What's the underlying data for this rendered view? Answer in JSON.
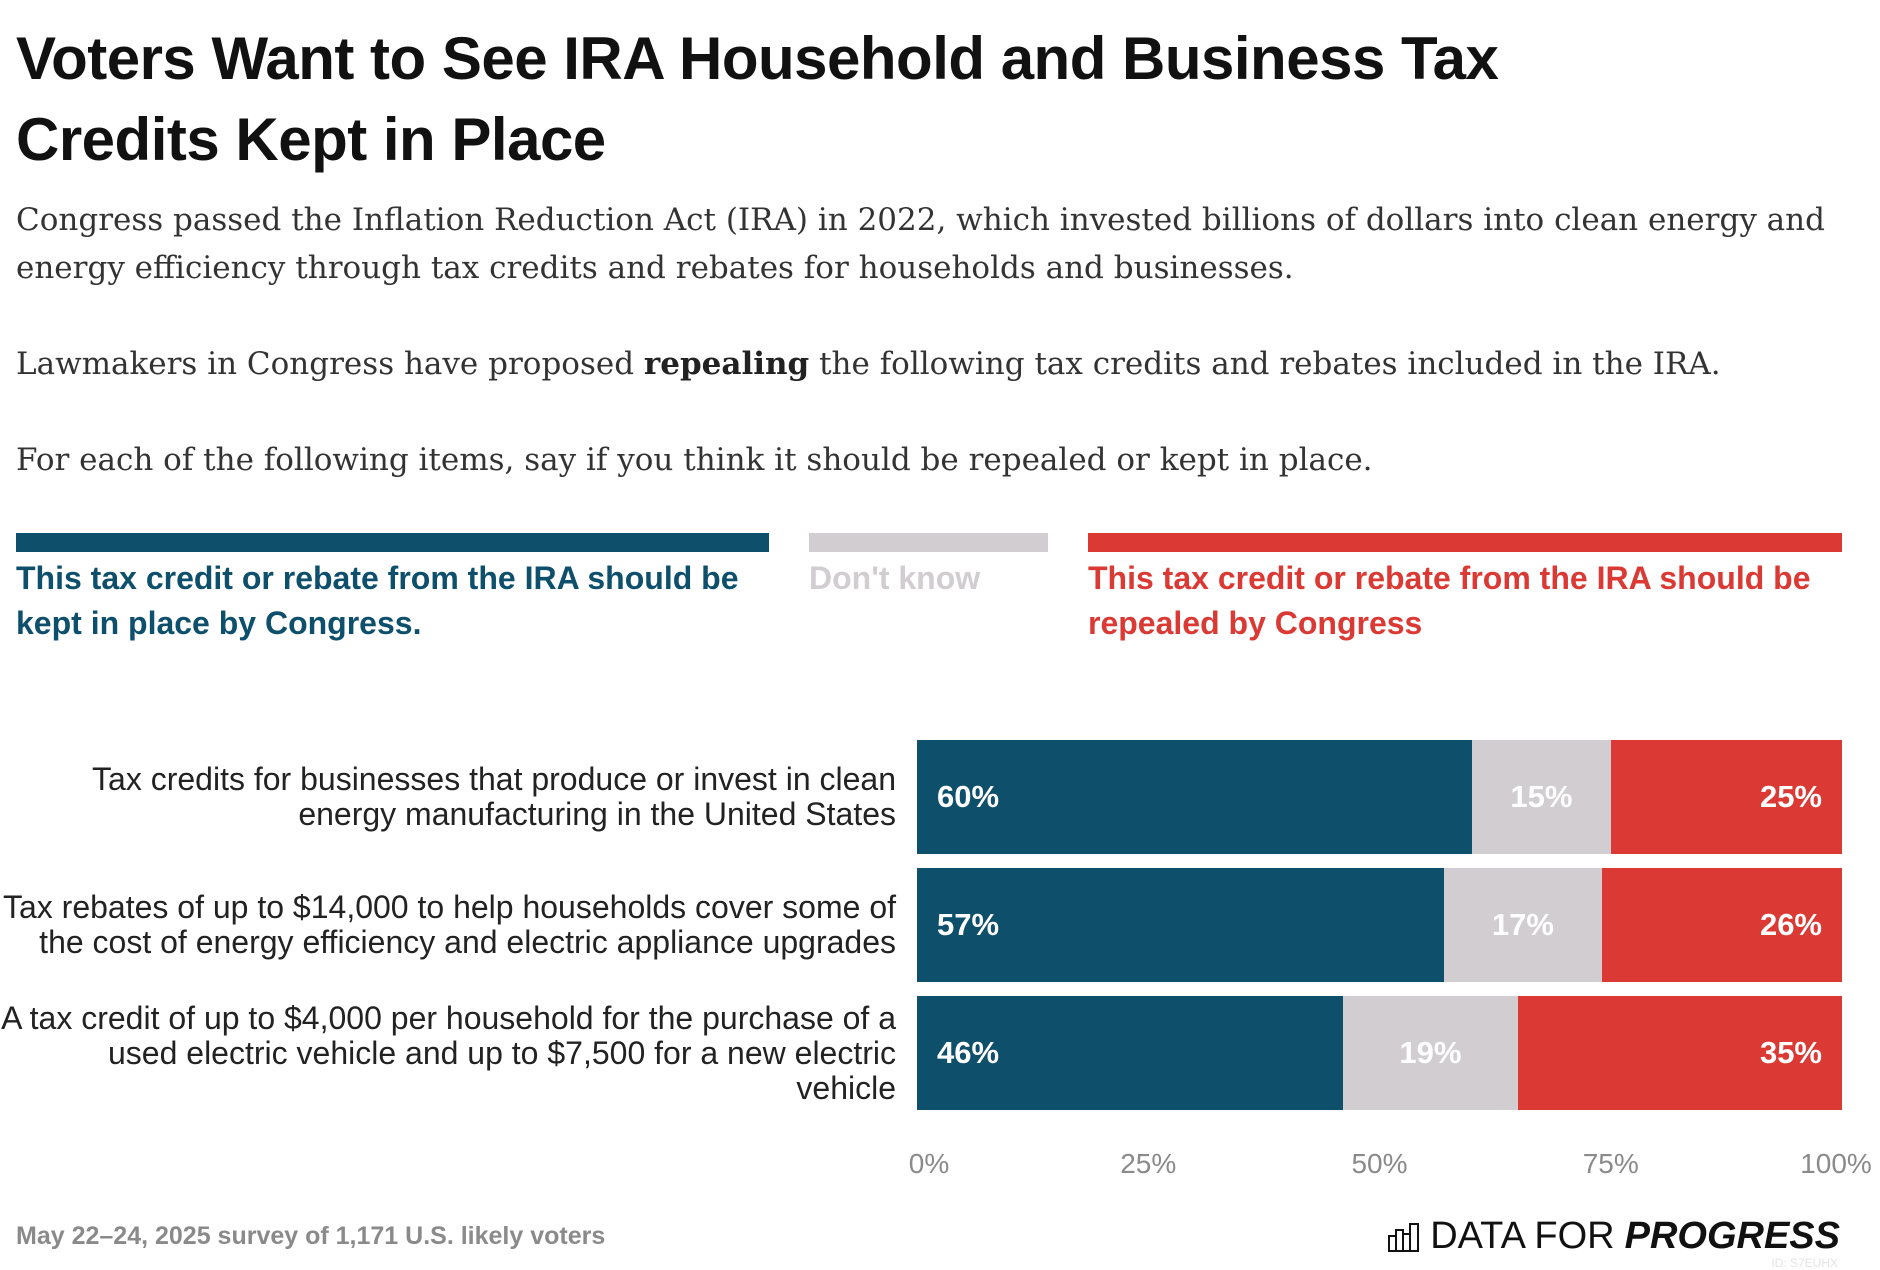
{
  "title": "Voters Want to See IRA Household and Business Tax Credits Kept in Place",
  "subtitle": {
    "p1": "Congress passed the Inflation Reduction Act (IRA) in 2022, which invested billions of dollars into clean energy and energy efficiency through tax credits and rebates for households and businesses.",
    "p2_before": "Lawmakers in Congress have proposed ",
    "p2_bold": "repealing",
    "p2_after": " the following tax credits and rebates included in the IRA.",
    "p3": "For each of the following items, say if you think it should be repealed or kept in place."
  },
  "colors": {
    "kept": "#0e4f6c",
    "dont_know": "#d1cdd0",
    "repealed": "#db3a34"
  },
  "chart_data": {
    "type": "bar",
    "orientation": "horizontal",
    "stacked": true,
    "legend_placement": "top",
    "categories": [
      "Tax credits for businesses that produce or invest in clean energy manufacturing in the United States",
      "Tax rebates of up to $14,000 to help households cover some of the cost of energy efficiency and electric appliance upgrades",
      "A tax credit of up to $4,000 per household for the purchase of a used electric vehicle and up to $7,500 for a new electric vehicle"
    ],
    "series": [
      {
        "name": "This tax credit or rebate from the IRA should be kept in place by Congress.",
        "values": [
          60,
          57,
          46
        ],
        "labels": [
          "60%",
          "57%",
          "46%"
        ]
      },
      {
        "name": "Don't know",
        "values": [
          15,
          17,
          19
        ],
        "labels": [
          "15%",
          "17%",
          "19%"
        ]
      },
      {
        "name": "This tax credit or rebate from the IRA should be repealed by Congress",
        "values": [
          25,
          26,
          35
        ],
        "labels": [
          "25%",
          "26%",
          "35%"
        ]
      }
    ],
    "xlim": [
      0,
      100
    ],
    "ticks": [
      "0%",
      "25%",
      "50%",
      "75%",
      "100%"
    ],
    "grid": false
  },
  "footer": "May 22–24, 2025 survey of 1,171 U.S. likely voters",
  "logo": {
    "text_light": "DATA FOR",
    "text_bold": "PROGRESS",
    "id": "ID: S7EUHX"
  }
}
